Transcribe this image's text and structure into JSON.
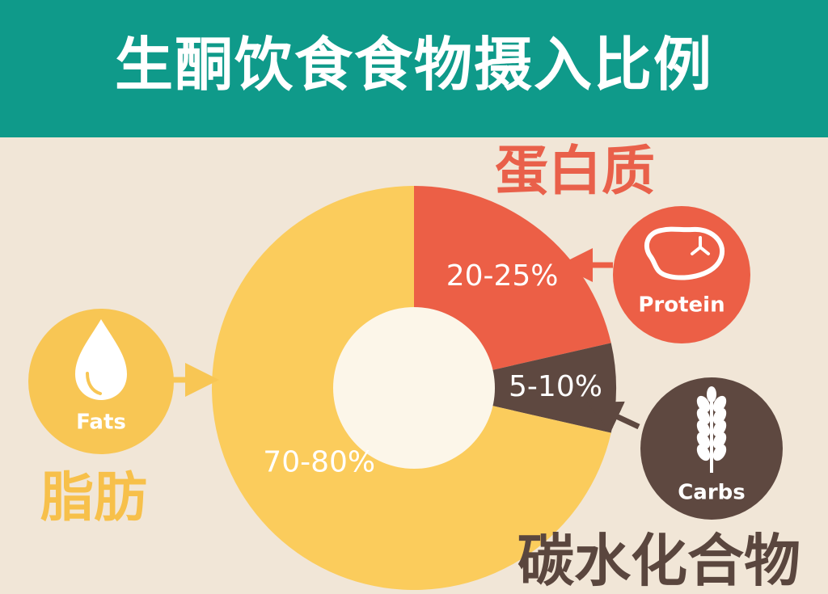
{
  "header": {
    "title": "生酮饮食食物摄入比例",
    "background": "#0f9a8a"
  },
  "colors": {
    "background": "#f1e6d7",
    "fat": "#fbcc5c",
    "protein": "#ec5f46",
    "carbs": "#5e4840",
    "center": "#fcf6e9",
    "fat_icon_circle": "#f8c654"
  },
  "chart_data": {
    "type": "pie",
    "donut": true,
    "title": "生酮饮食食物摄入比例",
    "slices": [
      {
        "name": "蛋白质",
        "icon_label": "Protein",
        "icon": "steak-icon",
        "value_label": "20-25%",
        "value": 22.5,
        "color": "#ec5f46"
      },
      {
        "name": "碳水化合物",
        "icon_label": "Carbs",
        "icon": "wheat-icon",
        "value_label": "5-10%",
        "value": 7.5,
        "color": "#5e4840"
      },
      {
        "name": "脂肪",
        "icon_label": "Fats",
        "icon": "drop-icon",
        "value_label": "70-80%",
        "value": 75,
        "color": "#fbcc5c"
      }
    ]
  }
}
